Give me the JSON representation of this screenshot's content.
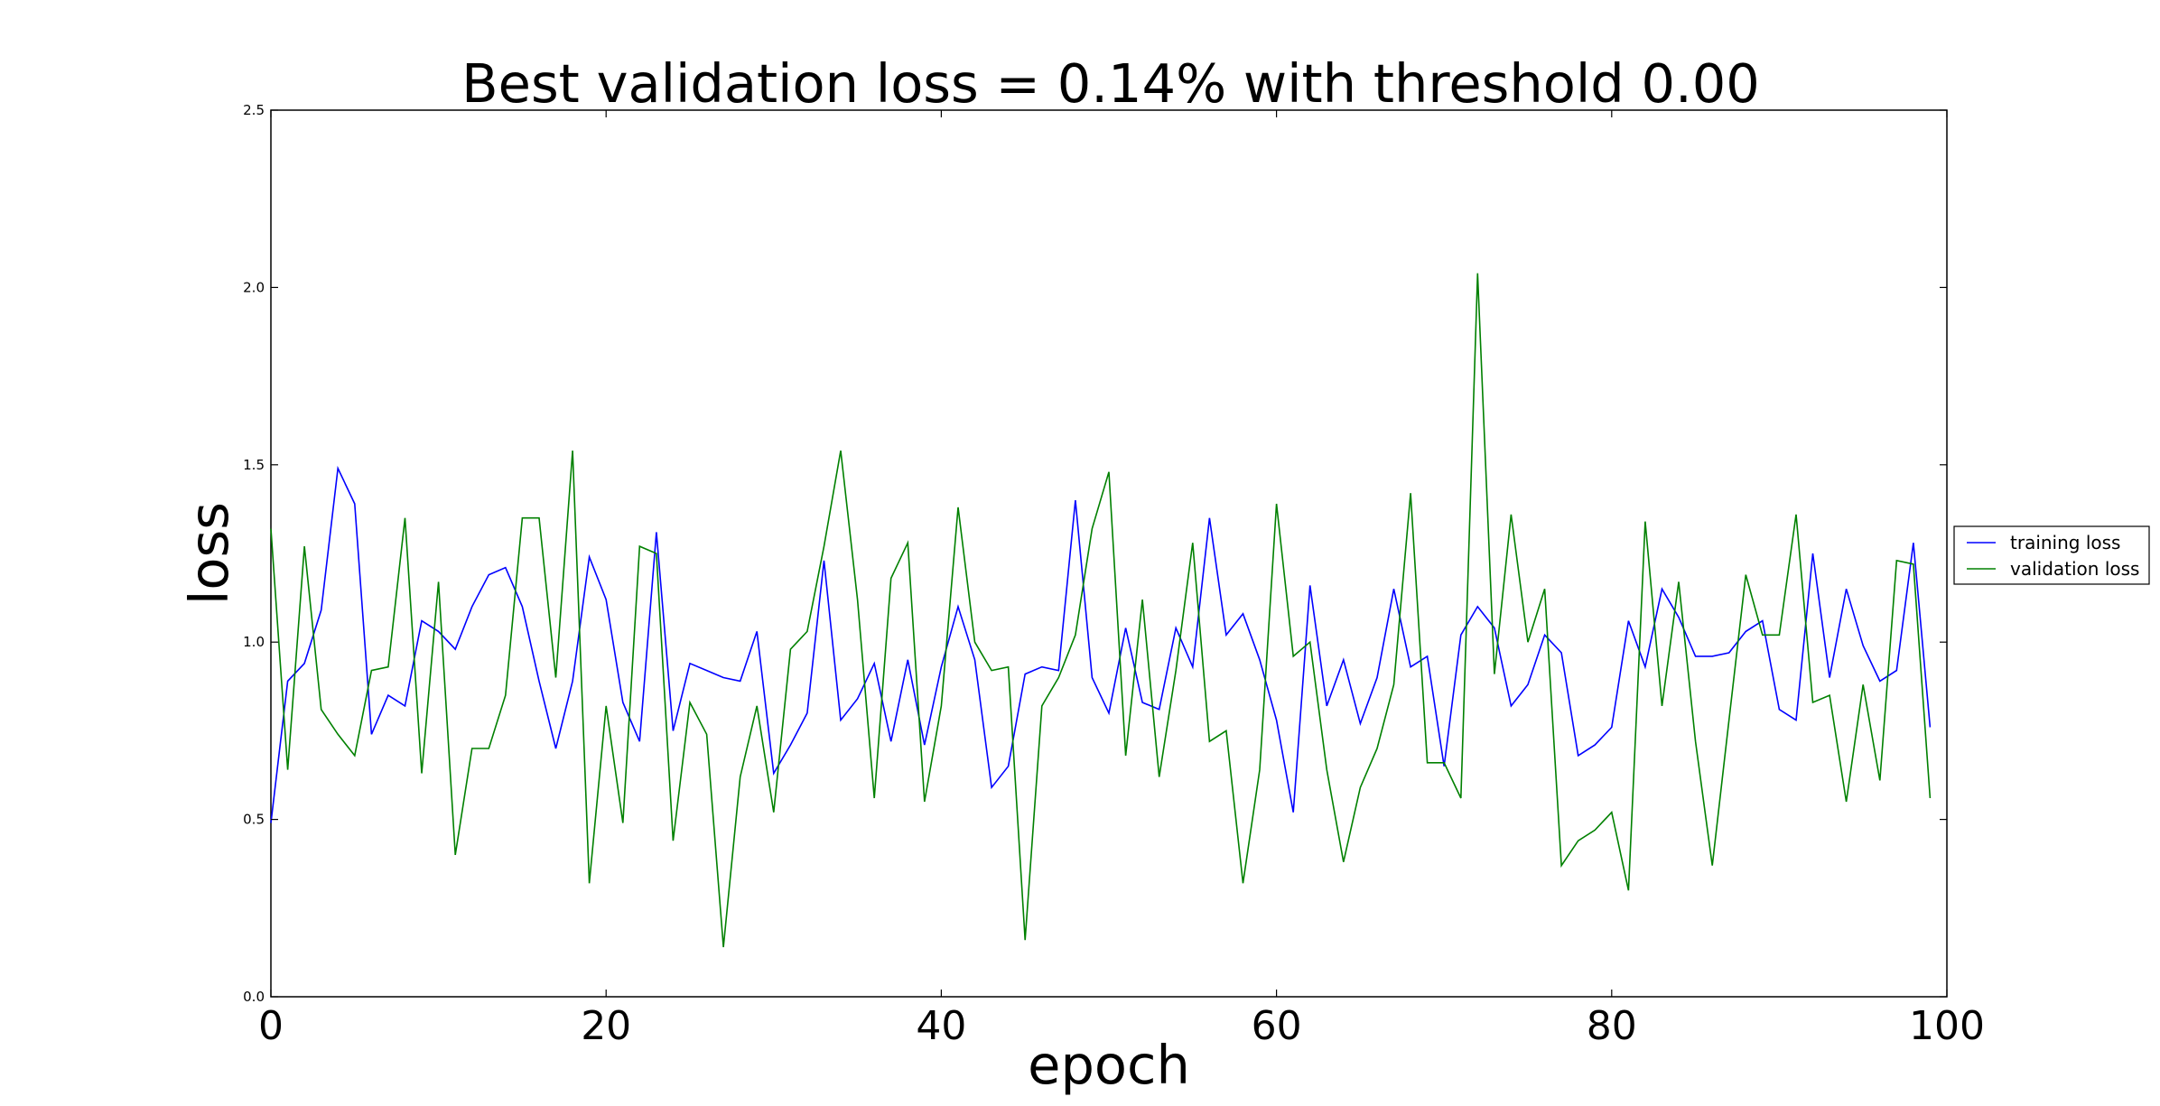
{
  "chart_data": {
    "type": "line",
    "title": "Best validation loss = 0.14% with threshold 0.00",
    "xlabel": "epoch",
    "ylabel": "loss",
    "xlim": [
      0,
      100
    ],
    "ylim": [
      0,
      2.5
    ],
    "xticks": [
      0,
      20,
      40,
      60,
      80,
      100
    ],
    "xtick_labels": [
      "0",
      "20",
      "40",
      "60",
      "80",
      "100"
    ],
    "yticks": [
      0,
      0.5,
      1.0,
      1.5,
      2.0,
      2.5
    ],
    "ytick_labels": [
      "0.0",
      "0.5",
      "1.0",
      "1.5",
      "2.0",
      "2.5"
    ],
    "grid": false,
    "legend_position": "outside right",
    "x": [
      0,
      1,
      2,
      3,
      4,
      5,
      6,
      7,
      8,
      9,
      10,
      11,
      12,
      13,
      14,
      15,
      16,
      17,
      18,
      19,
      20,
      21,
      22,
      23,
      24,
      25,
      26,
      27,
      28,
      29,
      30,
      31,
      32,
      33,
      34,
      35,
      36,
      37,
      38,
      39,
      40,
      41,
      42,
      43,
      44,
      45,
      46,
      47,
      48,
      49,
      50,
      51,
      52,
      53,
      54,
      55,
      56,
      57,
      58,
      59,
      60,
      61,
      62,
      63,
      64,
      65,
      66,
      67,
      68,
      69,
      70,
      71,
      72,
      73,
      74,
      75,
      76,
      77,
      78,
      79,
      80,
      81,
      82,
      83,
      84,
      85,
      86,
      87,
      88,
      89,
      90,
      91,
      92,
      93,
      94,
      95,
      96,
      97,
      98,
      99
    ],
    "series": [
      {
        "name": "training loss",
        "color": "#0000ff",
        "values": [
          0.49,
          0.89,
          0.94,
          1.09,
          1.49,
          1.39,
          0.74,
          0.85,
          0.82,
          1.06,
          1.03,
          0.98,
          1.1,
          1.19,
          1.21,
          1.1,
          0.89,
          0.7,
          0.89,
          1.24,
          1.12,
          0.83,
          0.72,
          1.31,
          0.75,
          0.94,
          0.92,
          0.9,
          0.89,
          1.03,
          0.63,
          0.71,
          0.8,
          1.23,
          0.78,
          0.84,
          0.94,
          0.72,
          0.95,
          0.71,
          0.93,
          1.1,
          0.95,
          0.59,
          0.65,
          0.91,
          0.93,
          0.92,
          1.4,
          0.9,
          0.8,
          1.04,
          0.83,
          0.81,
          1.04,
          0.93,
          1.35,
          1.02,
          1.08,
          0.95,
          0.78,
          0.52,
          1.16,
          0.82,
          0.95,
          0.77,
          0.9,
          1.15,
          0.93,
          0.96,
          0.65,
          1.02,
          1.1,
          1.04,
          0.82,
          0.88,
          1.02,
          0.97,
          0.68,
          0.71,
          0.76,
          1.06,
          0.93,
          1.15,
          1.07,
          0.96,
          0.96,
          0.97,
          1.03,
          1.06,
          0.81,
          0.78,
          1.25,
          0.9,
          1.15,
          0.99,
          0.89,
          0.92,
          1.28,
          0.76
        ]
      },
      {
        "name": "validation loss",
        "color": "#008000",
        "values": [
          1.32,
          0.64,
          1.27,
          0.81,
          0.74,
          0.68,
          0.92,
          0.93,
          1.35,
          0.63,
          1.17,
          0.4,
          0.7,
          0.7,
          0.85,
          1.35,
          1.35,
          0.9,
          1.54,
          0.32,
          0.82,
          0.49,
          1.27,
          1.25,
          0.44,
          0.83,
          0.74,
          0.14,
          0.62,
          0.82,
          0.52,
          0.98,
          1.03,
          1.27,
          1.54,
          1.12,
          0.56,
          1.18,
          1.28,
          0.55,
          0.82,
          1.38,
          1.0,
          0.92,
          0.93,
          0.16,
          0.82,
          0.9,
          1.02,
          1.32,
          1.48,
          0.68,
          1.12,
          0.62,
          0.92,
          1.28,
          0.72,
          0.75,
          0.32,
          0.64,
          1.39,
          0.96,
          1.0,
          0.64,
          0.38,
          0.59,
          0.7,
          0.88,
          1.42,
          0.66,
          0.66,
          0.56,
          2.04,
          0.91,
          1.36,
          1.0,
          1.15,
          0.37,
          0.44,
          0.47,
          0.52,
          0.3,
          1.34,
          0.82,
          1.17,
          0.72,
          0.37,
          0.78,
          1.19,
          1.02,
          1.02,
          1.36,
          0.83,
          0.85,
          0.55,
          0.88,
          0.61,
          1.23,
          1.22,
          0.56
        ]
      }
    ]
  }
}
